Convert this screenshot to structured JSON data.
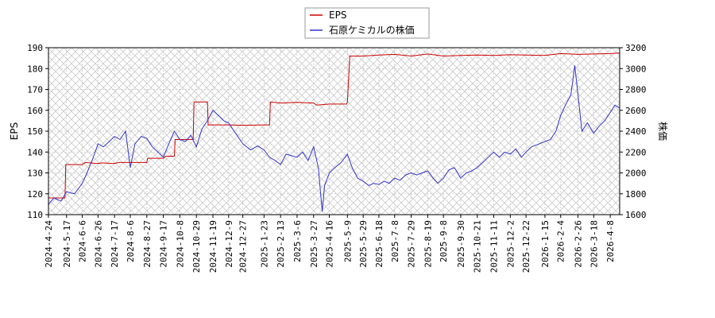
{
  "chart_data": {
    "type": "line",
    "legend_position": "top-center",
    "grid": true,
    "y_left": {
      "label": "EPS",
      "range": [
        110,
        190
      ],
      "ticks": [
        110,
        120,
        130,
        140,
        150,
        160,
        170,
        180,
        190
      ]
    },
    "y_right": {
      "label": "株価",
      "range": [
        1600,
        3200
      ],
      "ticks": [
        1600,
        1800,
        2000,
        2200,
        2400,
        2600,
        2800,
        3000,
        3200
      ]
    },
    "x_ticks": [
      "2024-4-24",
      "2024-5-17",
      "2024-6-6",
      "2024-6-26",
      "2024-7-17",
      "2024-8-6",
      "2024-8-27",
      "2024-9-17",
      "2024-10-8",
      "2024-10-29",
      "2024-11-19",
      "2024-12-9",
      "2024-12-27",
      "2025-1-23",
      "2025-2-13",
      "2025-3-6",
      "2025-3-27",
      "2025-4-16",
      "2025-5-9",
      "2025-5-29",
      "2025-6-18",
      "2025-7-8",
      "2025-7-29",
      "2025-8-19",
      "2025-9-8",
      "2025-9-30",
      "2025-10-21",
      "2025-11-11",
      "2025-12-2",
      "2025-12-22",
      "2026-1-15",
      "2026-2-4",
      "2026-2-26",
      "2026-3-18",
      "2026-4-8"
    ],
    "series": [
      {
        "name": "EPS",
        "color": "#cc0000",
        "axis": "left",
        "points": [
          [
            "2024-4-24",
            118
          ],
          [
            "2024-5-15",
            118
          ],
          [
            "2024-5-16",
            134
          ],
          [
            "2024-6-6",
            134
          ],
          [
            "2024-6-10",
            135
          ],
          [
            "2024-6-26",
            134.5
          ],
          [
            "2024-7-1",
            134.8
          ],
          [
            "2024-7-17",
            134.5
          ],
          [
            "2024-7-22",
            135
          ],
          [
            "2024-8-27",
            135
          ],
          [
            "2024-8-28",
            137
          ],
          [
            "2024-9-17",
            137
          ],
          [
            "2024-9-20",
            138
          ],
          [
            "2024-10-1",
            138
          ],
          [
            "2024-10-2",
            146
          ],
          [
            "2024-10-25",
            146
          ],
          [
            "2024-10-26",
            164
          ],
          [
            "2024-11-12",
            164
          ],
          [
            "2024-11-13",
            153
          ],
          [
            "2024-12-9",
            153
          ],
          [
            "2024-12-27",
            152.8
          ],
          [
            "2025-1-23",
            153
          ],
          [
            "2025-1-30",
            153
          ],
          [
            "2025-1-31",
            164
          ],
          [
            "2025-2-13",
            163.5
          ],
          [
            "2025-3-6",
            163.8
          ],
          [
            "2025-3-27",
            163.5
          ],
          [
            "2025-3-31",
            162.5
          ],
          [
            "2025-4-16",
            163
          ],
          [
            "2025-5-8",
            163
          ],
          [
            "2025-5-9",
            164
          ],
          [
            "2025-5-12",
            186
          ],
          [
            "2025-5-29",
            186
          ],
          [
            "2025-6-18",
            186.5
          ],
          [
            "2025-7-8",
            186.8
          ],
          [
            "2025-7-29",
            186
          ],
          [
            "2025-8-19",
            187
          ],
          [
            "2025-9-8",
            186
          ],
          [
            "2025-9-30",
            186.3
          ],
          [
            "2025-10-21",
            186.5
          ],
          [
            "2025-11-11",
            186.3
          ],
          [
            "2025-12-2",
            186.6
          ],
          [
            "2025-12-22",
            186.5
          ],
          [
            "2026-1-15",
            186.3
          ],
          [
            "2026-2-4",
            187.2
          ],
          [
            "2026-2-26",
            186.8
          ],
          [
            "2026-3-18",
            187
          ],
          [
            "2026-4-8",
            187.2
          ],
          [
            "2026-4-20",
            187.5
          ]
        ]
      },
      {
        "name": "石原ケミカルの株価",
        "color": "#3333cc",
        "axis": "right",
        "points": [
          [
            "2024-4-24",
            1700
          ],
          [
            "2024-5-1",
            1760
          ],
          [
            "2024-5-10",
            1730
          ],
          [
            "2024-5-17",
            1820
          ],
          [
            "2024-5-27",
            1800
          ],
          [
            "2024-6-6",
            1900
          ],
          [
            "2024-6-12",
            2000
          ],
          [
            "2024-6-20",
            2150
          ],
          [
            "2024-6-26",
            2280
          ],
          [
            "2024-7-3",
            2250
          ],
          [
            "2024-7-10",
            2300
          ],
          [
            "2024-7-17",
            2350
          ],
          [
            "2024-7-24",
            2320
          ],
          [
            "2024-7-31",
            2400
          ],
          [
            "2024-8-6",
            2050
          ],
          [
            "2024-8-12",
            2280
          ],
          [
            "2024-8-20",
            2350
          ],
          [
            "2024-8-27",
            2330
          ],
          [
            "2024-9-3",
            2250
          ],
          [
            "2024-9-10",
            2200
          ],
          [
            "2024-9-17",
            2150
          ],
          [
            "2024-9-24",
            2280
          ],
          [
            "2024-10-1",
            2400
          ],
          [
            "2024-10-8",
            2320
          ],
          [
            "2024-10-15",
            2300
          ],
          [
            "2024-10-22",
            2360
          ],
          [
            "2024-10-29",
            2250
          ],
          [
            "2024-11-5",
            2420
          ],
          [
            "2024-11-12",
            2500
          ],
          [
            "2024-11-19",
            2600
          ],
          [
            "2024-11-26",
            2550
          ],
          [
            "2024-12-3",
            2500
          ],
          [
            "2024-12-9",
            2480
          ],
          [
            "2024-12-16",
            2400
          ],
          [
            "2024-12-27",
            2280
          ],
          [
            "2025-1-6",
            2220
          ],
          [
            "2025-1-15",
            2260
          ],
          [
            "2025-1-23",
            2220
          ],
          [
            "2025-1-30",
            2150
          ],
          [
            "2025-2-6",
            2120
          ],
          [
            "2025-2-13",
            2080
          ],
          [
            "2025-2-20",
            2180
          ],
          [
            "2025-3-6",
            2150
          ],
          [
            "2025-3-13",
            2200
          ],
          [
            "2025-3-20",
            2120
          ],
          [
            "2025-3-27",
            2250
          ],
          [
            "2025-4-2",
            2050
          ],
          [
            "2025-4-7",
            1630
          ],
          [
            "2025-4-10",
            1880
          ],
          [
            "2025-4-16",
            2000
          ],
          [
            "2025-4-23",
            2050
          ],
          [
            "2025-5-1",
            2100
          ],
          [
            "2025-5-9",
            2180
          ],
          [
            "2025-5-15",
            2050
          ],
          [
            "2025-5-22",
            1950
          ],
          [
            "2025-5-29",
            1920
          ],
          [
            "2025-6-5",
            1880
          ],
          [
            "2025-6-11",
            1900
          ],
          [
            "2025-6-18",
            1890
          ],
          [
            "2025-6-25",
            1920
          ],
          [
            "2025-7-1",
            1900
          ],
          [
            "2025-7-8",
            1950
          ],
          [
            "2025-7-15",
            1930
          ],
          [
            "2025-7-22",
            1980
          ],
          [
            "2025-7-29",
            2000
          ],
          [
            "2025-8-5",
            1980
          ],
          [
            "2025-8-12",
            2000
          ],
          [
            "2025-8-19",
            2020
          ],
          [
            "2025-8-26",
            1950
          ],
          [
            "2025-9-1",
            1900
          ],
          [
            "2025-9-8",
            1950
          ],
          [
            "2025-9-15",
            2030
          ],
          [
            "2025-9-22",
            2050
          ],
          [
            "2025-9-30",
            1950
          ],
          [
            "2025-10-7",
            2000
          ],
          [
            "2025-10-14",
            2020
          ],
          [
            "2025-10-21",
            2050
          ],
          [
            "2025-10-28",
            2100
          ],
          [
            "2025-11-4",
            2150
          ],
          [
            "2025-11-11",
            2200
          ],
          [
            "2025-11-18",
            2150
          ],
          [
            "2025-11-25",
            2200
          ],
          [
            "2025-12-2",
            2180
          ],
          [
            "2025-12-9",
            2230
          ],
          [
            "2025-12-16",
            2150
          ],
          [
            "2025-12-22",
            2200
          ],
          [
            "2025-12-29",
            2250
          ],
          [
            "2026-1-8",
            2280
          ],
          [
            "2026-1-15",
            2300
          ],
          [
            "2026-1-22",
            2320
          ],
          [
            "2026-1-29",
            2400
          ],
          [
            "2026-2-4",
            2550
          ],
          [
            "2026-2-10",
            2650
          ],
          [
            "2026-2-17",
            2750
          ],
          [
            "2026-2-22",
            3030
          ],
          [
            "2026-2-26",
            2750
          ],
          [
            "2026-3-3",
            2400
          ],
          [
            "2026-3-10",
            2480
          ],
          [
            "2026-3-18",
            2380
          ],
          [
            "2026-3-25",
            2450
          ],
          [
            "2026-4-1",
            2500
          ],
          [
            "2026-4-8",
            2580
          ],
          [
            "2026-4-14",
            2650
          ],
          [
            "2026-4-20",
            2620
          ]
        ]
      }
    ]
  }
}
